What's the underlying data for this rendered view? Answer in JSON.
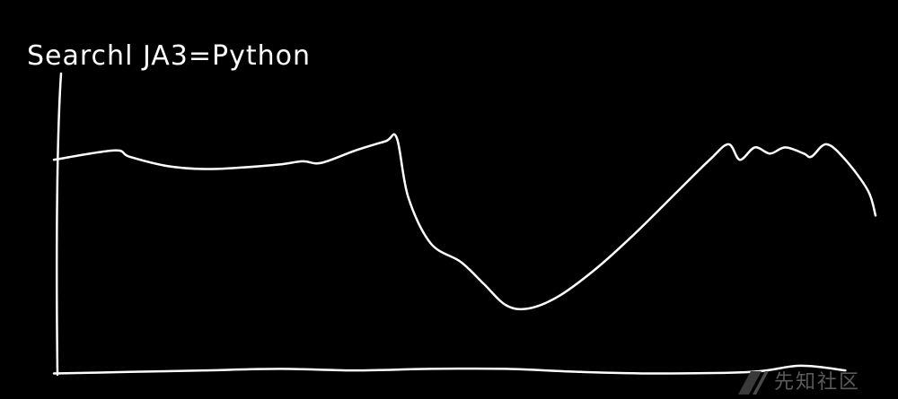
{
  "chart_data": {
    "type": "line",
    "title": "Searchl JA3=Python",
    "xlabel": "",
    "ylabel": "",
    "grid": false,
    "legend": "none",
    "series": [
      {
        "values": [
          70,
          73,
          71,
          68,
          67,
          67.5,
          68.5,
          69.5,
          69,
          73,
          76,
          77,
          58,
          43,
          37,
          30,
          23,
          22,
          26,
          35,
          46,
          58,
          70,
          75,
          70,
          74,
          72,
          74,
          72,
          71,
          75,
          70,
          60,
          52
        ],
        "x": [
          0,
          16,
          20,
          30,
          40,
          50,
          60,
          66,
          71,
          80,
          88,
          91,
          94,
          100,
          108,
          114,
          120,
          126,
          134,
          144,
          154,
          164,
          174,
          179,
          182,
          186,
          190,
          194,
          199,
          201,
          205,
          210,
          216,
          218
        ]
      },
      {
        "values": [
          1,
          1.5,
          2,
          2.5,
          2,
          2.5,
          2.5,
          1.5,
          1,
          1.5,
          3.5,
          2
        ],
        "x": [
          0,
          20,
          40,
          60,
          80,
          100,
          120,
          140,
          160,
          185,
          198,
          210
        ]
      }
    ],
    "xlim": [
      0,
      218
    ],
    "ylim": [
      0,
      110
    ],
    "color": "#ffffff"
  },
  "watermark": {
    "text": "先知社区",
    "icon": "xianzhi-logo-icon",
    "color": "#5a5a5a"
  }
}
